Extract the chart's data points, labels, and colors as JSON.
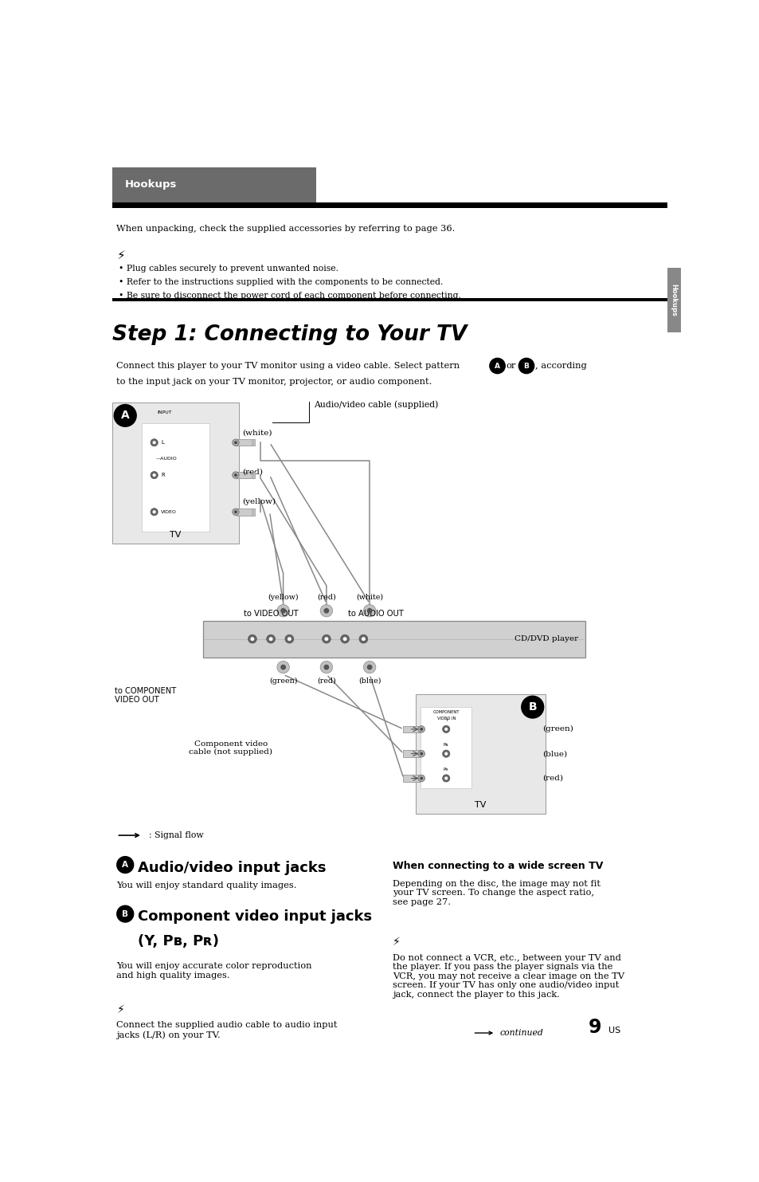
{
  "bg_color": "#ffffff",
  "page_width": 9.54,
  "page_height": 14.83,
  "header_bg": "#6b6b6b",
  "header_bar_bg": "#000000",
  "header_text": "Hookups",
  "header_text_color": "#ffffff",
  "side_tab_bg": "#888888",
  "side_tab_text": "Hookups",
  "title": "Step 1: Connecting to Your TV",
  "unpacking_text": "When unpacking, check the supplied accessories by referring to page 36.",
  "bullet1": "• Plug cables securely to prevent unwanted noise.",
  "bullet2": "• Refer to the instructions supplied with the components to be connected.",
  "bullet3": "• Be sure to disconnect the power cord of each component before connecting.",
  "signal_flow_text": ": Signal flow",
  "section_a_title": "Audio/video input jacks",
  "section_a_body": "You will enjoy standard quality images.",
  "section_b_title_line1": "Component video input jacks",
  "section_b_title_line2": "(Y, Pʙ, Pʀ)",
  "section_b_body": "You will enjoy accurate color reproduction\nand high quality images.",
  "note_b_body": "Connect the supplied audio cable to audio input\njacks (L/R) on your TV.",
  "wide_screen_title": "When connecting to a wide screen TV",
  "wide_screen_body": "Depending on the disc, the image may not fit\nyour TV screen. To change the aspect ratio,\nsee page 27.",
  "note_right_body": "Do not connect a VCR, etc., between your TV and\nthe player. If you pass the player signals via the\nVCR, you may not receive a clear image on the TV\nscreen. If your TV has only one audio/video input\njack, connect the player to this jack.",
  "continued_text": "continued",
  "page_num": "9",
  "page_suffix": "US"
}
